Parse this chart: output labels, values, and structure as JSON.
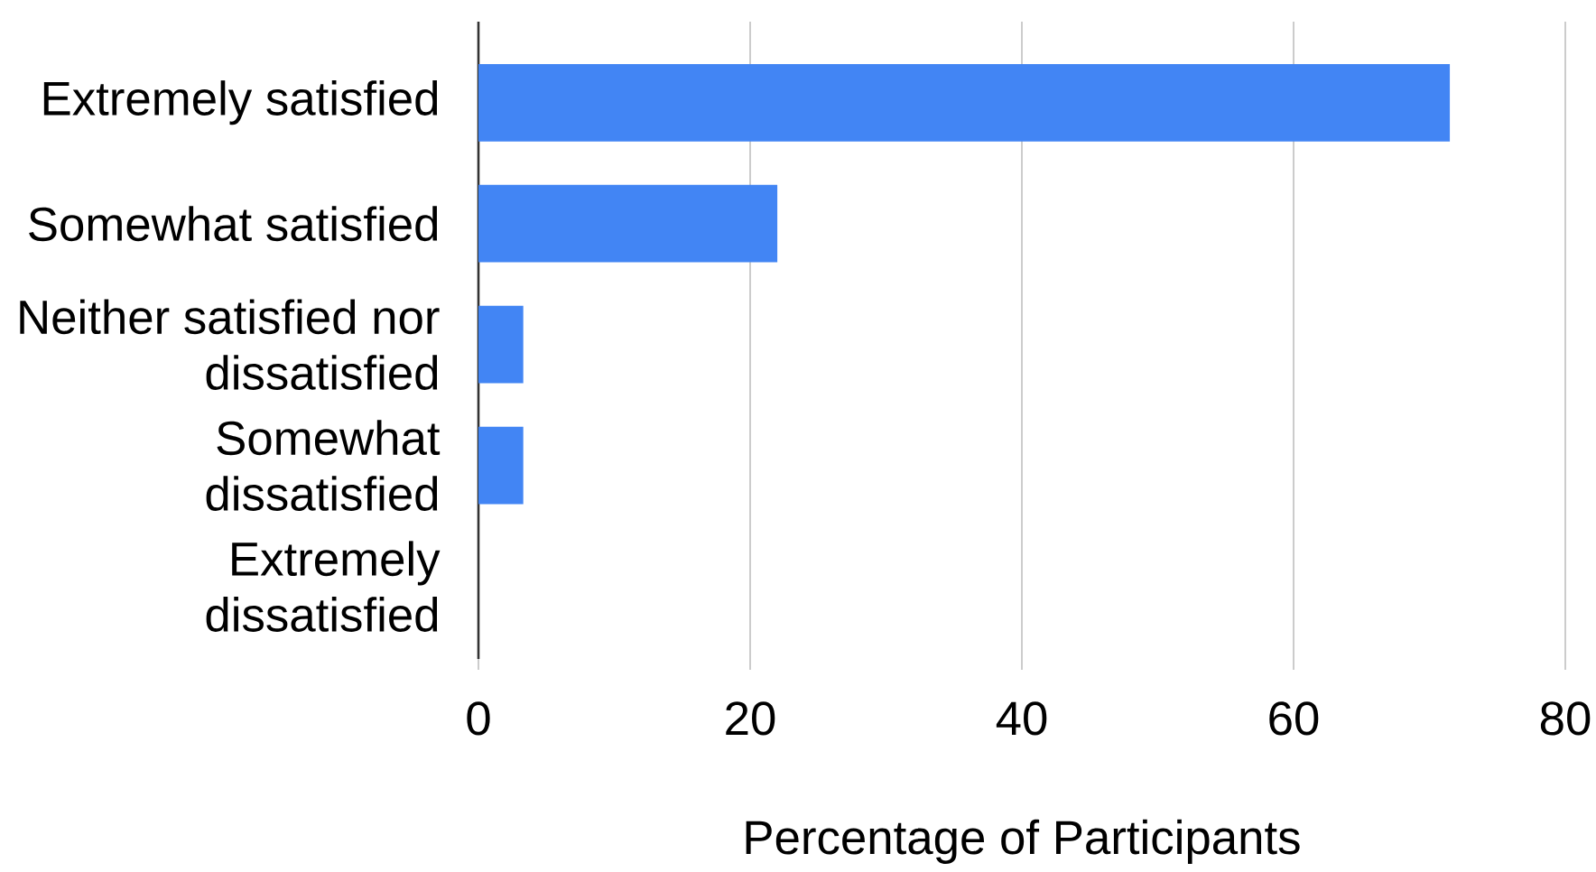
{
  "chart_data": {
    "type": "bar",
    "orientation": "horizontal",
    "xlabel": "Percentage of Participants",
    "categories": [
      "Extremely satisfied",
      "Somewhat satisfied",
      "Neither satisfied nor dissatisfied",
      "Somewhat dissatisfied",
      "Extremely dissatisfied"
    ],
    "values": [
      71.5,
      22,
      3.3,
      3.3,
      0
    ],
    "color": "#4285f4",
    "xlim": [
      0,
      80
    ],
    "xticks": [
      0,
      20,
      40,
      60,
      80
    ],
    "grid": "x"
  }
}
